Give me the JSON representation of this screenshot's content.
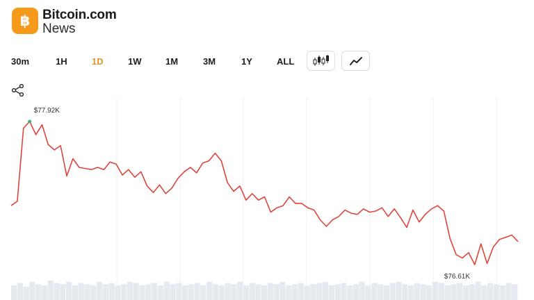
{
  "brand": {
    "name": "Bitcoin.com",
    "sub": "News",
    "logo_glyph": "฿",
    "accent": "#f59a1b"
  },
  "ranges": [
    {
      "label": "30m",
      "active": false
    },
    {
      "label": "1H",
      "active": false
    },
    {
      "label": "1D",
      "active": true
    },
    {
      "label": "1W",
      "active": false
    },
    {
      "label": "1M",
      "active": false
    },
    {
      "label": "3M",
      "active": false
    },
    {
      "label": "1Y",
      "active": false
    },
    {
      "label": "ALL",
      "active": false
    }
  ],
  "mode_buttons": [
    {
      "icon": "candlestick-icon"
    },
    {
      "icon": "line-chart-icon"
    }
  ],
  "share_icon": "share-icon",
  "colors": {
    "line": "#e0433b",
    "active_range": "#e8952a",
    "high_dot": "#3cb371",
    "volume": "#e6e9ef",
    "grid": "#efefef"
  },
  "chart_data": {
    "type": "line",
    "high_label": "$77.92K",
    "low_label": "$76.61K",
    "y": [
      77.15,
      77.19,
      77.86,
      77.92,
      77.8,
      77.89,
      77.71,
      77.66,
      77.7,
      77.42,
      77.58,
      77.5,
      77.49,
      77.48,
      77.5,
      77.48,
      77.55,
      77.53,
      77.43,
      77.48,
      77.41,
      77.46,
      77.33,
      77.27,
      77.34,
      77.26,
      77.31,
      77.4,
      77.46,
      77.5,
      77.45,
      77.54,
      77.56,
      77.63,
      77.56,
      77.36,
      77.28,
      77.33,
      77.2,
      77.26,
      77.2,
      77.23,
      77.09,
      77.13,
      77.15,
      77.23,
      77.17,
      77.17,
      77.13,
      77.11,
      77.02,
      76.96,
      77.02,
      77.05,
      77.11,
      77.08,
      77.07,
      77.12,
      77.09,
      77.1,
      77.13,
      77.05,
      77.12,
      77.04,
      76.95,
      77.11,
      77.0,
      77.07,
      77.12,
      77.15,
      77.1,
      76.85,
      76.7,
      76.67,
      76.72,
      76.61,
      76.8,
      76.62,
      76.77,
      76.84,
      76.86,
      76.88,
      76.82
    ]
  },
  "volume_data": [
    12,
    14,
    11,
    15,
    13,
    12,
    16,
    14,
    13,
    15,
    12,
    14,
    13,
    12,
    15,
    13,
    14,
    12,
    13,
    15,
    14,
    12,
    13,
    14,
    12,
    15,
    13,
    14,
    12,
    13,
    14,
    12,
    15,
    13,
    12,
    14,
    13,
    15,
    12,
    14,
    13,
    12,
    14,
    13,
    15,
    12,
    13,
    14,
    12,
    13,
    14,
    15,
    12,
    13,
    14,
    12,
    13,
    15,
    12,
    14,
    13,
    12,
    14,
    15,
    13,
    12,
    14,
    13,
    12,
    15,
    14,
    12,
    13,
    14,
    12,
    13,
    15,
    12,
    14,
    13,
    12,
    14,
    13
  ]
}
